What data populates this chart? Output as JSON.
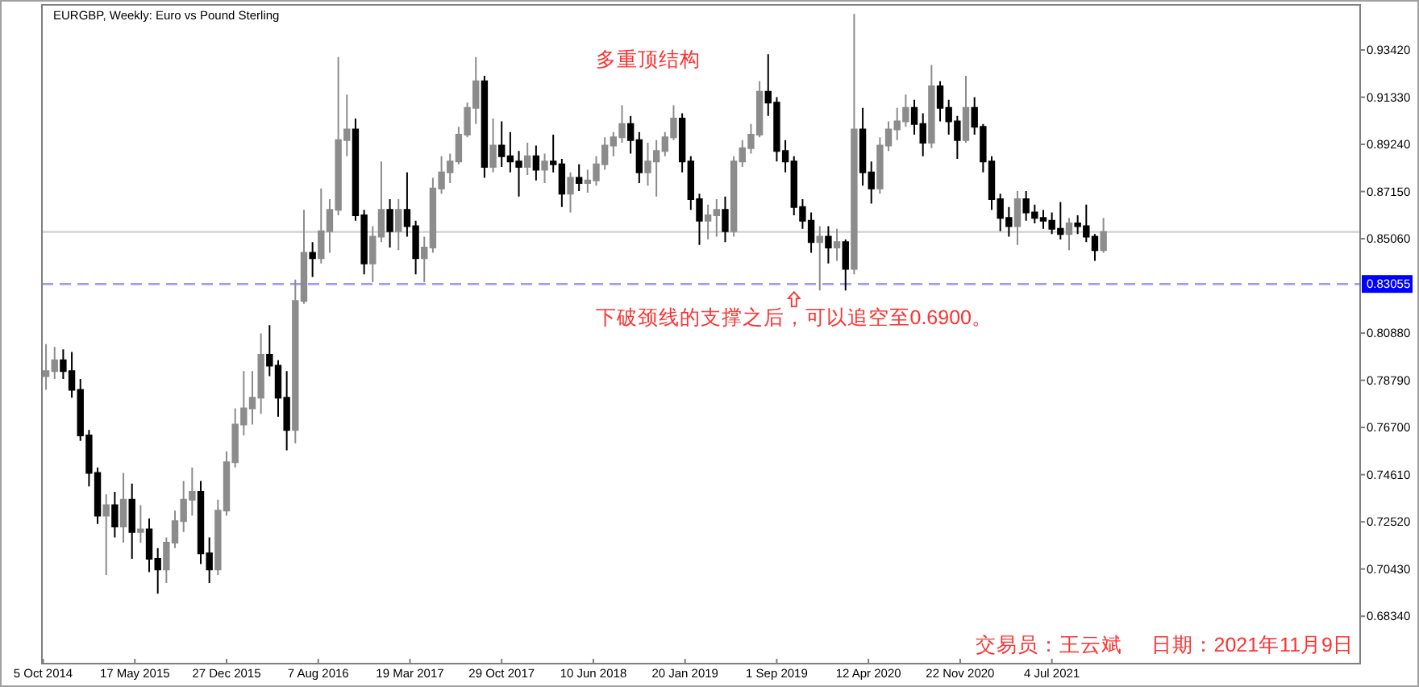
{
  "chart_data": {
    "type": "candlestick",
    "title": "EURGBP, Weekly:  Euro vs Pound Sterling",
    "x": [
      "2014-10-12",
      "2014-11-02",
      "2014-11-23",
      "2014-12-14",
      "2015-01-04",
      "2015-01-25",
      "2015-02-15",
      "2015-03-08",
      "2015-03-29",
      "2015-04-19",
      "2015-05-10",
      "2015-05-31",
      "2015-06-21",
      "2015-07-12",
      "2015-08-02",
      "2015-08-23",
      "2015-09-13",
      "2015-10-04",
      "2015-10-25",
      "2015-11-15",
      "2015-12-06",
      "2015-12-27",
      "2016-01-17",
      "2016-02-07",
      "2016-02-28",
      "2016-03-20",
      "2016-04-10",
      "2016-05-01",
      "2016-05-22",
      "2016-06-12",
      "2016-07-03",
      "2016-07-24",
      "2016-08-14",
      "2016-09-04",
      "2016-09-25",
      "2016-10-16",
      "2016-11-06",
      "2016-11-27",
      "2016-12-18",
      "2017-01-08",
      "2017-01-29",
      "2017-02-19",
      "2017-03-12",
      "2017-04-02",
      "2017-04-23",
      "2017-05-14",
      "2017-06-04",
      "2017-06-25",
      "2017-07-16",
      "2017-08-06",
      "2017-08-27",
      "2017-09-17",
      "2017-10-08",
      "2017-10-29",
      "2017-11-19",
      "2017-12-10",
      "2017-12-31",
      "2018-01-21",
      "2018-02-11",
      "2018-03-04",
      "2018-03-25",
      "2018-04-15",
      "2018-05-06",
      "2018-05-27",
      "2018-06-17",
      "2018-07-08",
      "2018-07-29",
      "2018-08-19",
      "2018-09-09",
      "2018-09-30",
      "2018-10-21",
      "2018-11-11",
      "2018-12-02",
      "2018-12-23",
      "2019-01-13",
      "2019-02-03",
      "2019-02-24",
      "2019-03-17",
      "2019-04-07",
      "2019-04-28",
      "2019-05-19",
      "2019-06-09",
      "2019-06-30",
      "2019-07-21",
      "2019-08-11",
      "2019-09-01",
      "2019-09-22",
      "2019-10-13",
      "2019-11-03",
      "2019-11-24",
      "2019-12-15",
      "2020-01-05",
      "2020-01-26",
      "2020-02-16",
      "2020-03-08",
      "2020-03-29",
      "2020-04-19",
      "2020-05-10",
      "2020-05-31",
      "2020-06-21",
      "2020-07-12",
      "2020-08-02",
      "2020-08-23",
      "2020-09-13",
      "2020-10-04",
      "2020-10-25",
      "2020-11-15",
      "2020-12-06",
      "2020-12-27",
      "2021-01-17",
      "2021-02-07",
      "2021-02-28",
      "2021-03-21",
      "2021-04-11",
      "2021-05-02",
      "2021-05-23",
      "2021-06-13",
      "2021-07-04",
      "2021-07-25",
      "2021-08-15",
      "2021-09-05",
      "2021-09-26",
      "2021-10-17",
      "2021-11-07"
    ],
    "ohlc": [
      [
        0.7897,
        0.8039,
        0.7837,
        0.792
      ],
      [
        0.792,
        0.8027,
        0.7885,
        0.7968
      ],
      [
        0.7968,
        0.8016,
        0.7885,
        0.792
      ],
      [
        0.792,
        0.8004,
        0.7802,
        0.7837
      ],
      [
        0.7837,
        0.7885,
        0.7611,
        0.7635
      ],
      [
        0.7635,
        0.7659,
        0.7409,
        0.7469
      ],
      [
        0.7469,
        0.7493,
        0.7243,
        0.7279
      ],
      [
        0.7279,
        0.7374,
        0.7017,
        0.7326
      ],
      [
        0.7326,
        0.7385,
        0.7183,
        0.7231
      ],
      [
        0.7231,
        0.7469,
        0.716,
        0.735
      ],
      [
        0.735,
        0.7421,
        0.7088,
        0.7207
      ],
      [
        0.7207,
        0.7326,
        0.716,
        0.7219
      ],
      [
        0.7219,
        0.7267,
        0.7029,
        0.7088
      ],
      [
        0.7088,
        0.7136,
        0.6934,
        0.7041
      ],
      [
        0.7041,
        0.7183,
        0.6981,
        0.716
      ],
      [
        0.716,
        0.7302,
        0.7136,
        0.7255
      ],
      [
        0.7255,
        0.7433,
        0.7207,
        0.735
      ],
      [
        0.735,
        0.7493,
        0.7279,
        0.7385
      ],
      [
        0.7385,
        0.7433,
        0.7065,
        0.7112
      ],
      [
        0.7112,
        0.7183,
        0.6981,
        0.7041
      ],
      [
        0.7041,
        0.735,
        0.7017,
        0.7302
      ],
      [
        0.7302,
        0.7564,
        0.7279,
        0.7516
      ],
      [
        0.7516,
        0.7754,
        0.7493,
        0.7683
      ],
      [
        0.7683,
        0.792,
        0.7635,
        0.7754
      ],
      [
        0.7754,
        0.792,
        0.7683,
        0.7802
      ],
      [
        0.7802,
        0.8087,
        0.773,
        0.7992
      ],
      [
        0.7992,
        0.8123,
        0.7897,
        0.7944
      ],
      [
        0.7944,
        0.7968,
        0.7718,
        0.7802
      ],
      [
        0.7802,
        0.792,
        0.7569,
        0.7659
      ],
      [
        0.7659,
        0.8325,
        0.76,
        0.823
      ],
      [
        0.823,
        0.8634,
        0.8218,
        0.8444
      ],
      [
        0.8444,
        0.8491,
        0.8337,
        0.842
      ],
      [
        0.842,
        0.8729,
        0.8396,
        0.8539
      ],
      [
        0.8539,
        0.8681,
        0.8444,
        0.8634
      ],
      [
        0.8634,
        0.9311,
        0.861,
        0.8943
      ],
      [
        0.8943,
        0.9145,
        0.8871,
        0.899
      ],
      [
        0.899,
        0.9038,
        0.8586,
        0.861
      ],
      [
        0.861,
        0.8634,
        0.8348,
        0.8396
      ],
      [
        0.8396,
        0.8562,
        0.8313,
        0.8515
      ],
      [
        0.8515,
        0.8848,
        0.8491,
        0.8634
      ],
      [
        0.8634,
        0.8681,
        0.8467,
        0.8539
      ],
      [
        0.8539,
        0.8681,
        0.8455,
        0.8634
      ],
      [
        0.8634,
        0.88,
        0.8515,
        0.8562
      ],
      [
        0.8562,
        0.8586,
        0.8348,
        0.842
      ],
      [
        0.842,
        0.8515,
        0.8313,
        0.8467
      ],
      [
        0.8467,
        0.8776,
        0.8444,
        0.8729
      ],
      [
        0.8729,
        0.8871,
        0.8705,
        0.88
      ],
      [
        0.88,
        0.8883,
        0.8753,
        0.8848
      ],
      [
        0.8848,
        0.9002,
        0.8836,
        0.8967
      ],
      [
        0.8967,
        0.9109,
        0.8955,
        0.9086
      ],
      [
        0.9086,
        0.9311,
        0.9014,
        0.9204
      ],
      [
        0.9204,
        0.9228,
        0.8776,
        0.8824
      ],
      [
        0.8824,
        0.9038,
        0.88,
        0.8919
      ],
      [
        0.8919,
        0.9026,
        0.8824,
        0.8871
      ],
      [
        0.8871,
        0.8979,
        0.88,
        0.8848
      ],
      [
        0.8848,
        0.8895,
        0.8693,
        0.8824
      ],
      [
        0.8824,
        0.8931,
        0.8788,
        0.8871
      ],
      [
        0.8871,
        0.8919,
        0.8764,
        0.8812
      ],
      [
        0.8812,
        0.8883,
        0.8753,
        0.8848
      ],
      [
        0.8848,
        0.8967,
        0.88,
        0.8836
      ],
      [
        0.8836,
        0.886,
        0.8646,
        0.8705
      ],
      [
        0.8705,
        0.88,
        0.8622,
        0.8776
      ],
      [
        0.8776,
        0.8836,
        0.8717,
        0.8753
      ],
      [
        0.8753,
        0.8812,
        0.871,
        0.8764
      ],
      [
        0.8764,
        0.8871,
        0.8741,
        0.8836
      ],
      [
        0.8836,
        0.8955,
        0.8812,
        0.8919
      ],
      [
        0.8919,
        0.8979,
        0.8871,
        0.8955
      ],
      [
        0.8955,
        0.9097,
        0.8931,
        0.9014
      ],
      [
        0.9014,
        0.905,
        0.8883,
        0.8943
      ],
      [
        0.8943,
        0.8979,
        0.8753,
        0.88
      ],
      [
        0.88,
        0.8931,
        0.8741,
        0.8848
      ],
      [
        0.8848,
        0.8943,
        0.8693,
        0.8895
      ],
      [
        0.8895,
        0.8979,
        0.8871,
        0.8955
      ],
      [
        0.8955,
        0.9097,
        0.8943,
        0.9038
      ],
      [
        0.9038,
        0.9062,
        0.88,
        0.8848
      ],
      [
        0.8848,
        0.8871,
        0.8634,
        0.8681
      ],
      [
        0.8681,
        0.8705,
        0.8479,
        0.8586
      ],
      [
        0.8586,
        0.8657,
        0.8503,
        0.861
      ],
      [
        0.861,
        0.8681,
        0.8515,
        0.8634
      ],
      [
        0.8634,
        0.8693,
        0.8491,
        0.8539
      ],
      [
        0.8539,
        0.8871,
        0.8515,
        0.8848
      ],
      [
        0.8848,
        0.8943,
        0.8824,
        0.8907
      ],
      [
        0.8907,
        0.9014,
        0.8883,
        0.8967
      ],
      [
        0.8967,
        0.9204,
        0.8955,
        0.9157
      ],
      [
        0.9157,
        0.9323,
        0.905,
        0.9109
      ],
      [
        0.9109,
        0.9133,
        0.8848,
        0.8895
      ],
      [
        0.8895,
        0.8943,
        0.88,
        0.8848
      ],
      [
        0.8848,
        0.8871,
        0.861,
        0.8646
      ],
      [
        0.8646,
        0.8681,
        0.855,
        0.8586
      ],
      [
        0.8586,
        0.8622,
        0.8444,
        0.8491
      ],
      [
        0.8491,
        0.8562,
        0.8277,
        0.8515
      ],
      [
        0.8515,
        0.8562,
        0.8396,
        0.8467
      ],
      [
        0.8467,
        0.855,
        0.8408,
        0.8491
      ],
      [
        0.8491,
        0.8503,
        0.8277,
        0.8372
      ],
      [
        0.8372,
        0.9502,
        0.8348,
        0.899
      ],
      [
        0.899,
        0.9086,
        0.8741,
        0.88
      ],
      [
        0.88,
        0.8848,
        0.8662,
        0.8729
      ],
      [
        0.8729,
        0.8955,
        0.8705,
        0.8919
      ],
      [
        0.8919,
        0.9026,
        0.8895,
        0.899
      ],
      [
        0.899,
        0.9086,
        0.8943,
        0.9026
      ],
      [
        0.9026,
        0.9145,
        0.9002,
        0.9086
      ],
      [
        0.9086,
        0.9121,
        0.8967,
        0.9014
      ],
      [
        0.9014,
        0.9062,
        0.8871,
        0.8931
      ],
      [
        0.8931,
        0.9276,
        0.8907,
        0.9181
      ],
      [
        0.9181,
        0.9204,
        0.9026,
        0.9086
      ],
      [
        0.9086,
        0.9121,
        0.8967,
        0.9026
      ],
      [
        0.9026,
        0.905,
        0.886,
        0.8943
      ],
      [
        0.8943,
        0.9228,
        0.8931,
        0.9086
      ],
      [
        0.9086,
        0.9133,
        0.8967,
        0.9002
      ],
      [
        0.9002,
        0.9014,
        0.88,
        0.8848
      ],
      [
        0.8848,
        0.8871,
        0.8634,
        0.8681
      ],
      [
        0.8681,
        0.8705,
        0.8539,
        0.8598
      ],
      [
        0.8598,
        0.8646,
        0.8515,
        0.8562
      ],
      [
        0.8562,
        0.8717,
        0.8479,
        0.8681
      ],
      [
        0.8681,
        0.8717,
        0.8586,
        0.8622
      ],
      [
        0.8622,
        0.8657,
        0.8574,
        0.8598
      ],
      [
        0.8598,
        0.8634,
        0.855,
        0.8586
      ],
      [
        0.8586,
        0.8622,
        0.8527,
        0.855
      ],
      [
        0.855,
        0.8669,
        0.8503,
        0.8527
      ],
      [
        0.8527,
        0.8598,
        0.8455,
        0.8574
      ],
      [
        0.8574,
        0.861,
        0.8527,
        0.8562
      ],
      [
        0.8562,
        0.8657,
        0.8491,
        0.8515
      ],
      [
        0.8515,
        0.8527,
        0.8408,
        0.8455
      ],
      [
        0.8455,
        0.8598,
        0.8444,
        0.8536
      ]
    ],
    "xlim": [
      "2014-10-02",
      "2023-07-27"
    ],
    "ylim": [
      0.6624,
      0.9542
    ],
    "xticks": [
      {
        "value": "2014-10-05",
        "label": "5 Oct 2014"
      },
      {
        "value": "2015-05-17",
        "label": "17 May 2015"
      },
      {
        "value": "2015-12-27",
        "label": "27 Dec 2015"
      },
      {
        "value": "2016-08-07",
        "label": "7 Aug 2016"
      },
      {
        "value": "2017-03-19",
        "label": "19 Mar 2017"
      },
      {
        "value": "2017-10-29",
        "label": "29 Oct 2017"
      },
      {
        "value": "2018-06-10",
        "label": "10 Jun 2018"
      },
      {
        "value": "2019-01-20",
        "label": "20 Jan 2019"
      },
      {
        "value": "2019-09-01",
        "label": "1 Sep 2019"
      },
      {
        "value": "2020-04-12",
        "label": "12 Apr 2020"
      },
      {
        "value": "2020-11-22",
        "label": "22 Nov 2020"
      },
      {
        "value": "2021-07-04",
        "label": "4 Jul 2021"
      }
    ],
    "yticks": [
      {
        "value": 0.9342,
        "label": "0.93420"
      },
      {
        "value": 0.9133,
        "label": "0.91330"
      },
      {
        "value": 0.8924,
        "label": "0.89240"
      },
      {
        "value": 0.8715,
        "label": "0.87150"
      },
      {
        "value": 0.8506,
        "label": "0.85060"
      },
      {
        "value": 0.8088,
        "label": "0.80880"
      },
      {
        "value": 0.7879,
        "label": "0.78790"
      },
      {
        "value": 0.767,
        "label": "0.76700"
      },
      {
        "value": 0.7461,
        "label": "0.74610"
      },
      {
        "value": 0.7252,
        "label": "0.72520"
      },
      {
        "value": 0.7043,
        "label": "0.70430"
      },
      {
        "value": 0.6834,
        "label": "0.68340"
      }
    ],
    "ref_lines": [
      {
        "axis": "y",
        "value": 0.8536,
        "color": "#d0d0d0",
        "line_style": "solid"
      },
      {
        "axis": "y",
        "value": 0.83055,
        "label": "0.83055",
        "color": "#9999ff",
        "line_style": "dashed"
      }
    ],
    "annotations": [
      "多重顶结构",
      {
        "text": "下破颈线的支撑之后，可以追空至0.6900。",
        "x": "2019-10-13",
        "y": 0.827
      },
      "交易员：王云斌",
      "日期：2021年11月9日"
    ]
  }
}
